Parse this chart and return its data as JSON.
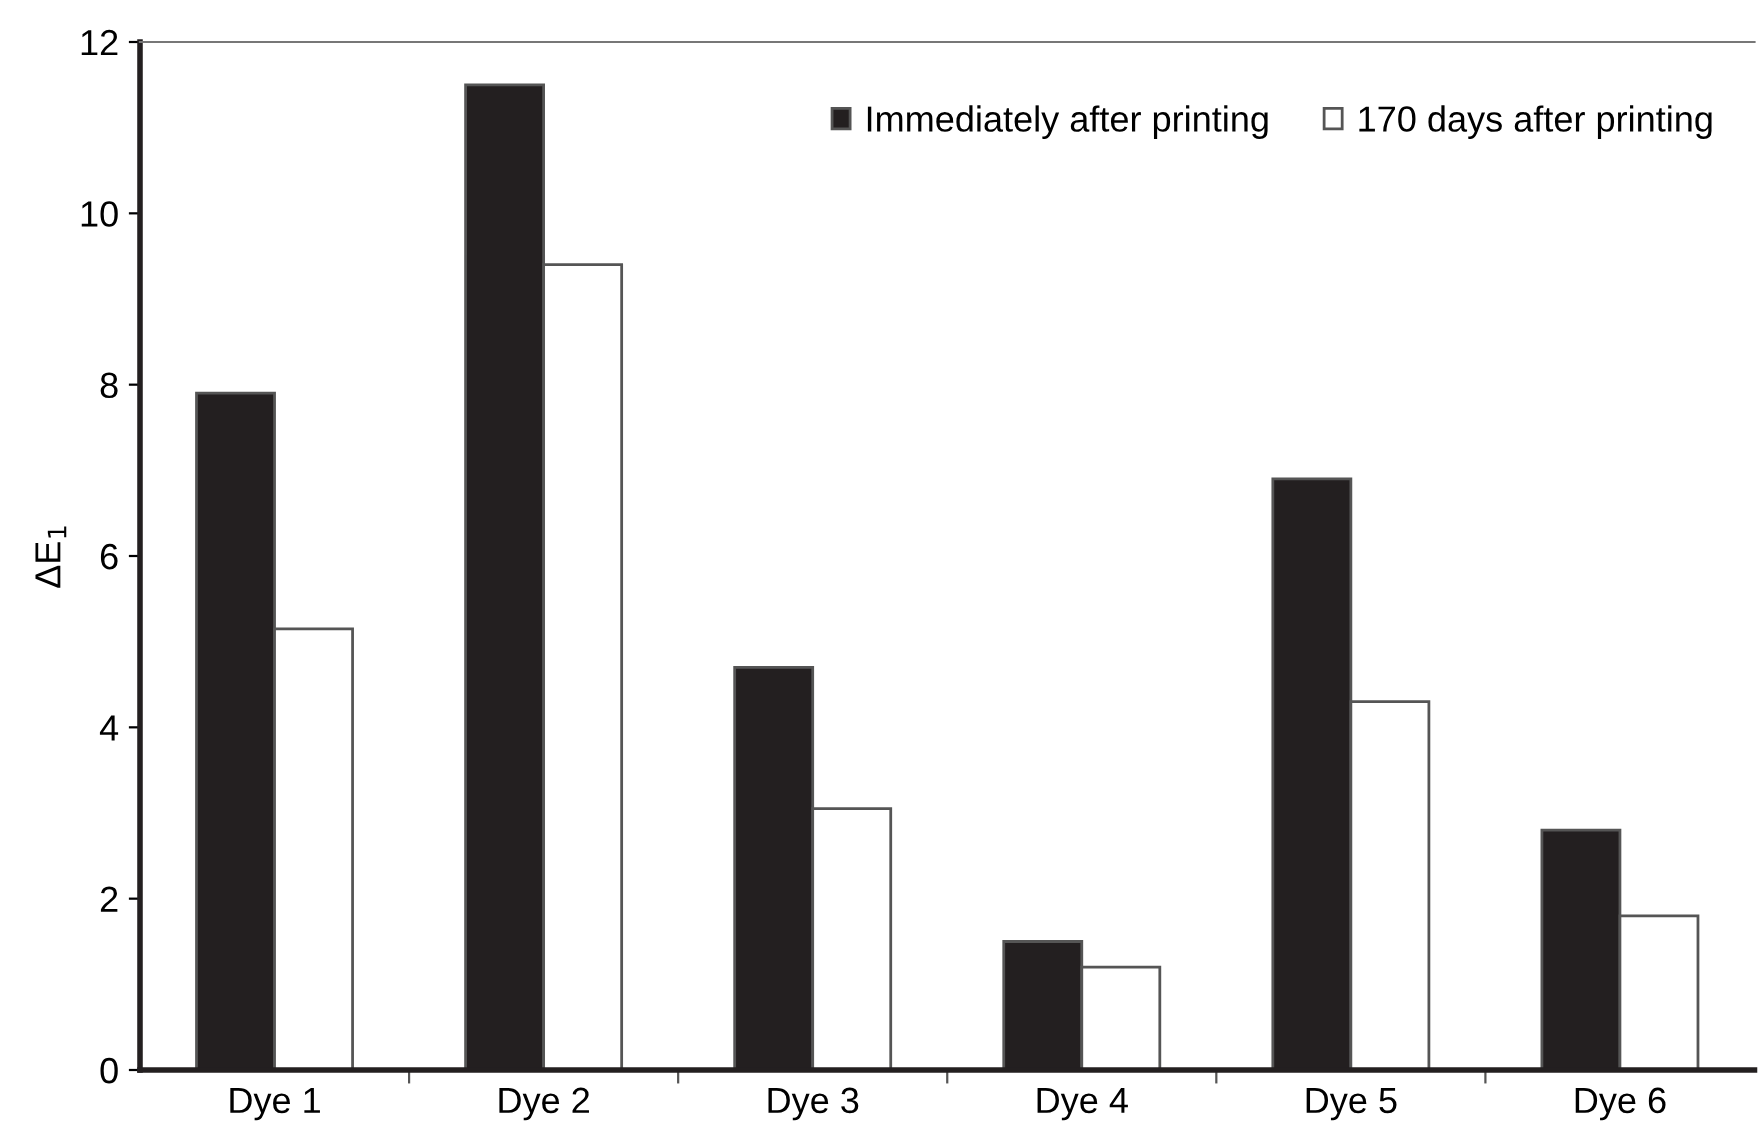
{
  "chart_data": {
    "type": "bar",
    "categories": [
      "Dye 1",
      "Dye 2",
      "Dye 3",
      "Dye 4",
      "Dye 5",
      "Dye 6"
    ],
    "ylabel": "ΔE$_{1}$",
    "series": [
      {
        "name": "Immediately after printing",
        "color": "#231f20",
        "values": [
          7.9,
          11.5,
          4.7,
          1.5,
          6.9,
          2.8
        ]
      },
      {
        "name": "170 days after printing",
        "color": "#ffffff",
        "values": [
          5.15,
          9.4,
          3.05,
          1.2,
          4.3,
          1.8
        ]
      }
    ],
    "ylim": [
      0,
      12
    ],
    "yticks": [
      0,
      2,
      4,
      6,
      8,
      10,
      12
    ],
    "grid": false,
    "legend": "top right"
  }
}
